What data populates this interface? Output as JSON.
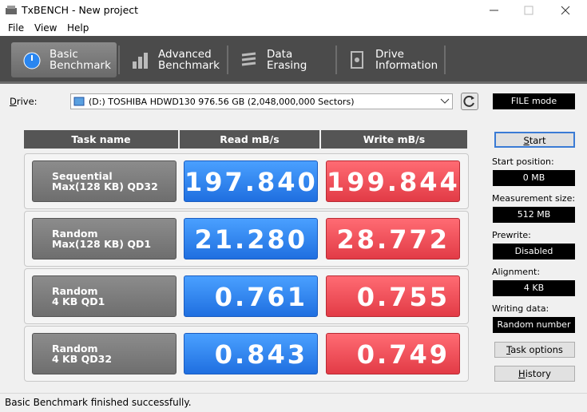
{
  "window": {
    "title": "TxBENCH - New project"
  },
  "menu": [
    "File",
    "View",
    "Help"
  ],
  "tabs": [
    [
      "Basic",
      "Benchmark"
    ],
    [
      "Advanced",
      "Benchmark"
    ],
    [
      "Data Erasing"
    ],
    [
      "Drive",
      "Information"
    ]
  ],
  "drive": {
    "label": "Drive:",
    "value": "(D:) TOSHIBA HDWD130  976.56 GB (2,048,000,000 Sectors)",
    "mode": "FILE mode"
  },
  "table": {
    "headers": [
      "Task name",
      "Read mB/s",
      "Write mB/s"
    ],
    "rows": [
      {
        "task": [
          "Sequential",
          "Max(128 KB) QD32"
        ],
        "read": "197.840",
        "write": "199.844"
      },
      {
        "task": [
          "Random",
          "Max(128 KB) QD1"
        ],
        "read": "21.280",
        "write": "28.772"
      },
      {
        "task": [
          "Random",
          "4 KB QD1"
        ],
        "read": "0.761",
        "write": "0.755"
      },
      {
        "task": [
          "Random",
          "4 KB QD32"
        ],
        "read": "0.843",
        "write": "0.749"
      }
    ]
  },
  "side": {
    "start": "Start",
    "fields": [
      {
        "label": "Start position:",
        "value": "0 MB"
      },
      {
        "label": "Measurement size:",
        "value": "512 MB"
      },
      {
        "label": "Prewrite:",
        "value": "Disabled"
      },
      {
        "label": "Alignment:",
        "value": "4 KB"
      },
      {
        "label": "Writing data:",
        "value": "Random number"
      }
    ],
    "buttons": [
      "Task options",
      "History"
    ]
  },
  "status": "Basic Benchmark finished successfully."
}
